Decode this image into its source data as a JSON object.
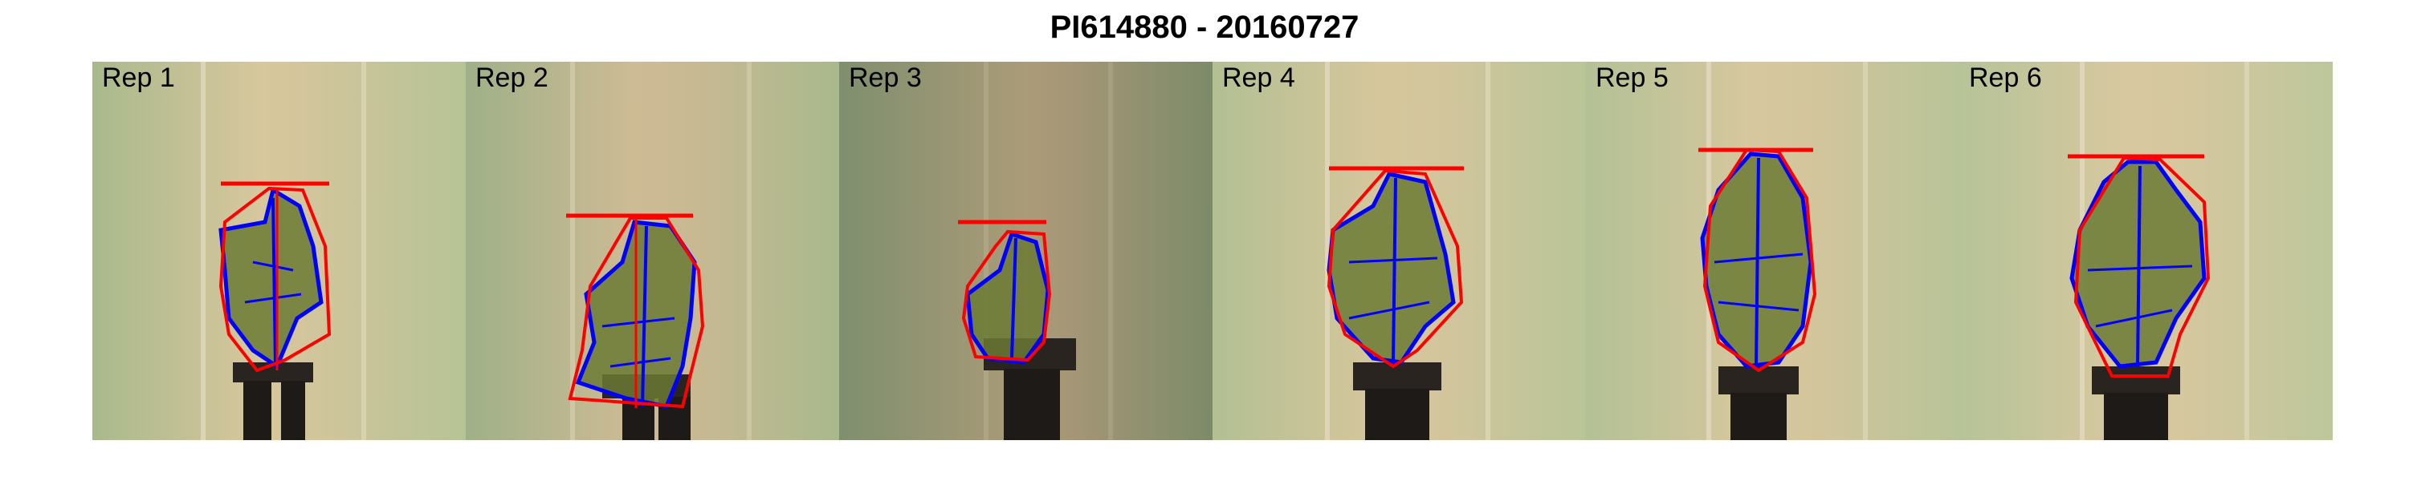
{
  "title": "PI614880 - 20160727",
  "panels": [
    {
      "label": "Rep 1",
      "bg": "#b8c498"
    },
    {
      "label": "Rep 2",
      "bg": "#a7b48c"
    },
    {
      "label": "Rep 3",
      "bg": "#8e9876"
    },
    {
      "label": "Rep 4",
      "bg": "#bcc49a"
    },
    {
      "label": "Rep 5",
      "bg": "#bac39a"
    },
    {
      "label": "Rep 6",
      "bg": "#bfc69e"
    }
  ],
  "colors": {
    "hull": "#ff0000",
    "contour": "#0000ff",
    "leaf": "#6b7a34",
    "pot": "#2a2420",
    "wall_center": "#d2c39a"
  }
}
